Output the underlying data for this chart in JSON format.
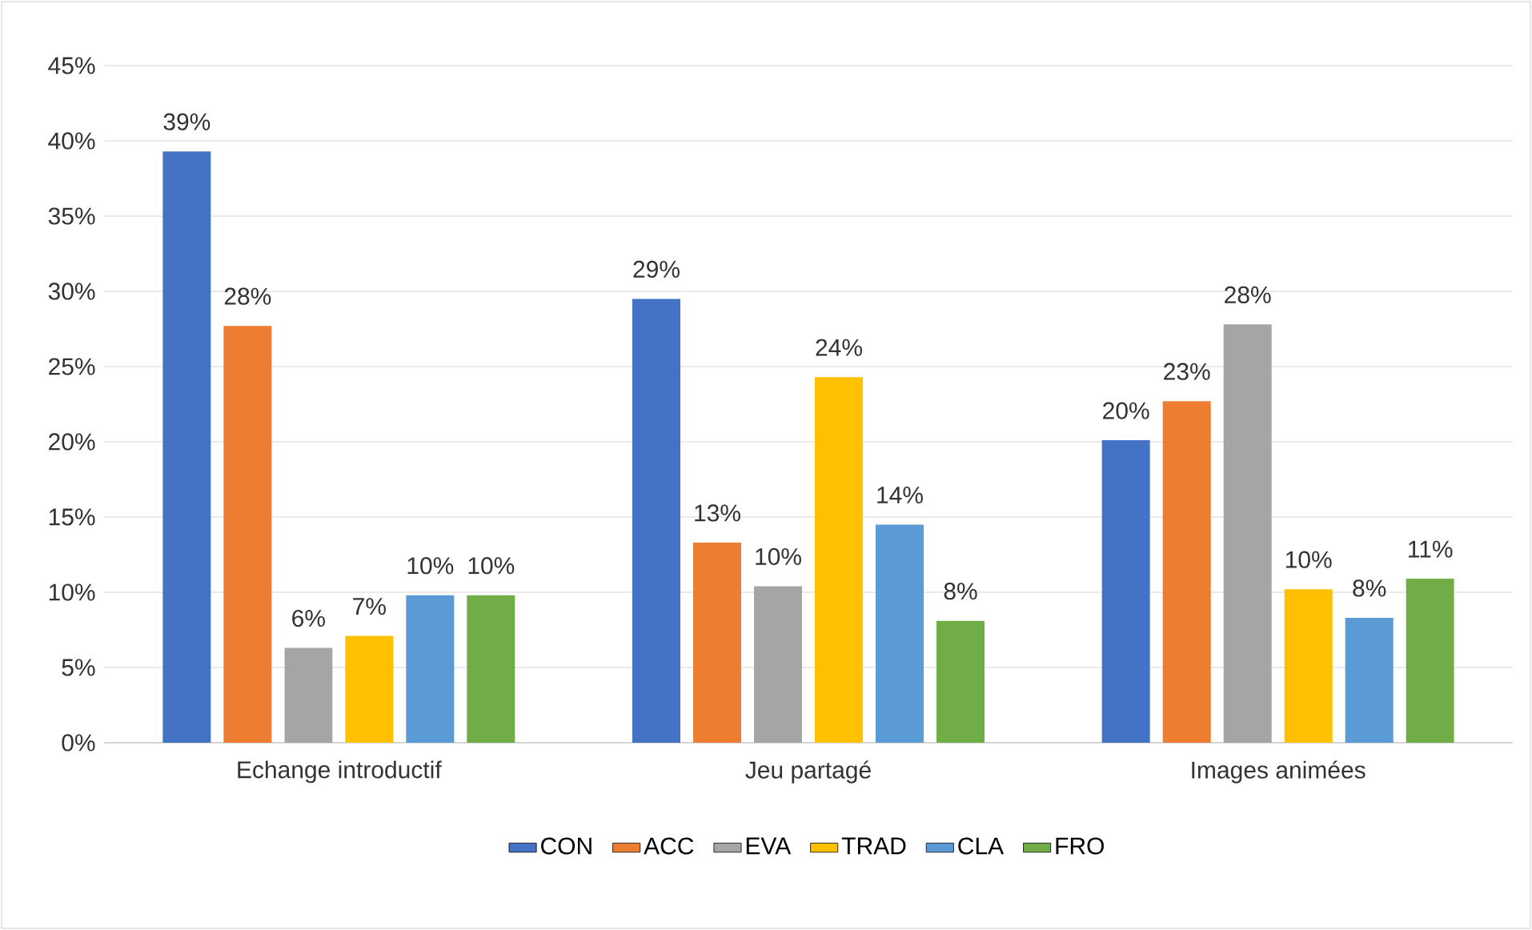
{
  "chart_data": {
    "type": "bar",
    "categories": [
      "Echange introductif",
      "Jeu partagé",
      "Images animées"
    ],
    "series": [
      {
        "name": "CON",
        "color": "#4472c4",
        "values": [
          39.3,
          29.5,
          20.1
        ],
        "value_labels": [
          "39%",
          "29%",
          "20%"
        ]
      },
      {
        "name": "ACC",
        "color": "#ed7d31",
        "values": [
          27.7,
          13.3,
          22.7
        ],
        "value_labels": [
          "28%",
          "13%",
          "23%"
        ]
      },
      {
        "name": "EVA",
        "color": "#a5a5a5",
        "values": [
          6.3,
          10.4,
          27.8
        ],
        "value_labels": [
          "6%",
          "10%",
          "28%"
        ]
      },
      {
        "name": "TRAD",
        "color": "#ffc000",
        "values": [
          7.1,
          24.3,
          10.2
        ],
        "value_labels": [
          "7%",
          "24%",
          "10%"
        ]
      },
      {
        "name": "CLA",
        "color": "#5b9bd5",
        "values": [
          9.8,
          14.5,
          8.3
        ],
        "value_labels": [
          "10%",
          "14%",
          "8%"
        ]
      },
      {
        "name": "FRO",
        "color": "#70ad47",
        "values": [
          9.8,
          8.1,
          10.9
        ],
        "value_labels": [
          "10%",
          "8%",
          "11%"
        ]
      }
    ],
    "ylim": [
      0,
      45
    ],
    "yticks": [
      {
        "value": 0,
        "label": "0%"
      },
      {
        "value": 5,
        "label": "5%"
      },
      {
        "value": 10,
        "label": "10%"
      },
      {
        "value": 15,
        "label": "15%"
      },
      {
        "value": 20,
        "label": "20%"
      },
      {
        "value": 25,
        "label": "25%"
      },
      {
        "value": 30,
        "label": "30%"
      },
      {
        "value": 35,
        "label": "35%"
      },
      {
        "value": 40,
        "label": "40%"
      },
      {
        "value": 45,
        "label": "45%"
      }
    ],
    "grid": "y",
    "legend": "bottom"
  }
}
